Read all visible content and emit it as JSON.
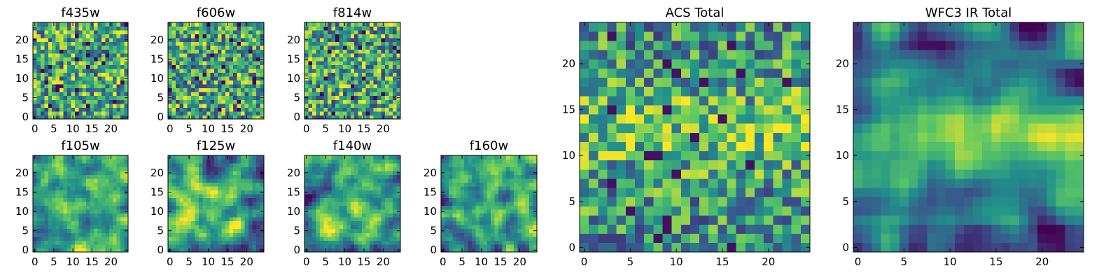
{
  "figure": {
    "background": "#ffffff"
  },
  "colormap": {
    "name": "viridis",
    "stops": [
      "#440154",
      "#3b528b",
      "#21918c",
      "#5ec962",
      "#fde725"
    ]
  },
  "chart_data": [
    {
      "type": "heatmap",
      "title": "f435w",
      "grid": false,
      "n": 25,
      "xlim": [
        -0.5,
        24.5
      ],
      "ylim": [
        -0.5,
        24.5
      ],
      "xticks": [
        0,
        5,
        10,
        15,
        20
      ],
      "yticks": [
        0,
        5,
        10,
        15,
        20
      ],
      "style": "noisy",
      "seed": 11
    },
    {
      "type": "heatmap",
      "title": "f606w",
      "grid": false,
      "n": 25,
      "xlim": [
        -0.5,
        24.5
      ],
      "ylim": [
        -0.5,
        24.5
      ],
      "xticks": [
        0,
        5,
        10,
        15,
        20
      ],
      "yticks": [
        0,
        5,
        10,
        15,
        20
      ],
      "style": "noisy",
      "seed": 23
    },
    {
      "type": "heatmap",
      "title": "f814w",
      "grid": false,
      "n": 25,
      "xlim": [
        -0.5,
        24.5
      ],
      "ylim": [
        -0.5,
        24.5
      ],
      "xticks": [
        0,
        5,
        10,
        15,
        20
      ],
      "yticks": [
        0,
        5,
        10,
        15,
        20
      ],
      "style": "noisy",
      "seed": 37
    },
    {
      "type": "heatmap",
      "title": "f105w",
      "grid": false,
      "n": 25,
      "xlim": [
        -0.5,
        24.5
      ],
      "ylim": [
        -0.5,
        24.5
      ],
      "xticks": [
        0,
        5,
        10,
        15,
        20
      ],
      "yticks": [
        0,
        5,
        10,
        15,
        20
      ],
      "style": "smooth",
      "seed": 41
    },
    {
      "type": "heatmap",
      "title": "f125w",
      "grid": false,
      "n": 25,
      "xlim": [
        -0.5,
        24.5
      ],
      "ylim": [
        -0.5,
        24.5
      ],
      "xticks": [
        0,
        5,
        10,
        15,
        20
      ],
      "yticks": [
        0,
        5,
        10,
        15,
        20
      ],
      "style": "smooth",
      "seed": 53
    },
    {
      "type": "heatmap",
      "title": "f140w",
      "grid": false,
      "n": 25,
      "xlim": [
        -0.5,
        24.5
      ],
      "ylim": [
        -0.5,
        24.5
      ],
      "xticks": [
        0,
        5,
        10,
        15,
        20
      ],
      "yticks": [
        0,
        5,
        10,
        15,
        20
      ],
      "style": "smooth",
      "seed": 67
    },
    {
      "type": "heatmap",
      "title": "f160w",
      "grid": false,
      "n": 25,
      "xlim": [
        -0.5,
        24.5
      ],
      "ylim": [
        -0.5,
        24.5
      ],
      "xticks": [
        0,
        5,
        10,
        15,
        20
      ],
      "yticks": [
        0,
        5,
        10,
        15,
        20
      ],
      "style": "smooth",
      "seed": 79
    },
    {
      "type": "heatmap",
      "title": "ACS Total",
      "grid": false,
      "n": 25,
      "xlim": [
        -0.5,
        24.5
      ],
      "ylim": [
        -0.5,
        24.5
      ],
      "xticks": [
        0,
        5,
        10,
        15,
        20
      ],
      "yticks": [
        0,
        5,
        10,
        15,
        20
      ],
      "style": "acs",
      "seed": 97
    },
    {
      "type": "heatmap",
      "title": "WFC3 IR Total",
      "grid": false,
      "n": 25,
      "xlim": [
        -0.5,
        24.5
      ],
      "ylim": [
        -0.5,
        24.5
      ],
      "xticks": [
        0,
        5,
        10,
        15,
        20
      ],
      "yticks": [
        0,
        5,
        10,
        15,
        20
      ],
      "style": "ir",
      "seed": 113
    }
  ]
}
